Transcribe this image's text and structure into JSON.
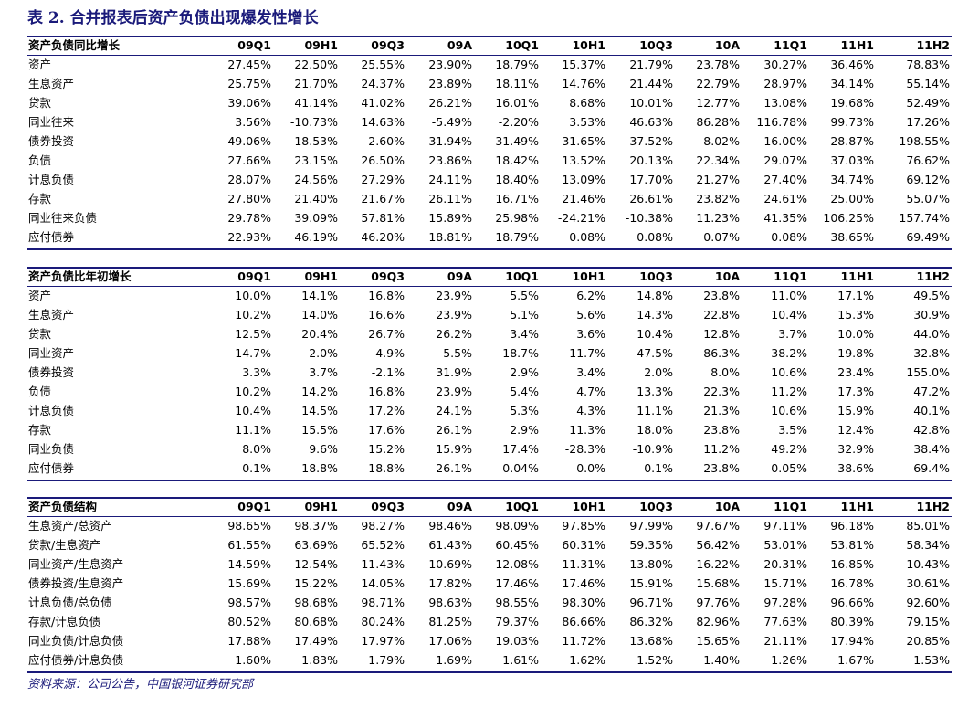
{
  "title": "表 2. 合并报表后资产负债出现爆发性增长",
  "tables": [
    {
      "header": [
        "资产负债同比增长",
        "09Q1",
        "09H1",
        "09Q3",
        "09A",
        "10Q1",
        "10H1",
        "10Q3",
        "10A",
        "11Q1",
        "11H1",
        "11H2"
      ],
      "rows": [
        [
          "资产",
          "27.45%",
          "22.50%",
          "25.55%",
          "23.90%",
          "18.79%",
          "15.37%",
          "21.79%",
          "23.78%",
          "30.27%",
          "36.46%",
          "78.83%"
        ],
        [
          "生息资产",
          "25.75%",
          "21.70%",
          "24.37%",
          "23.89%",
          "18.11%",
          "14.76%",
          "21.44%",
          "22.79%",
          "28.97%",
          "34.14%",
          "55.14%"
        ],
        [
          "贷款",
          "39.06%",
          "41.14%",
          "41.02%",
          "26.21%",
          "16.01%",
          "8.68%",
          "10.01%",
          "12.77%",
          "13.08%",
          "19.68%",
          "52.49%"
        ],
        [
          "同业往来",
          "3.56%",
          "-10.73%",
          "14.63%",
          "-5.49%",
          "-2.20%",
          "3.53%",
          "46.63%",
          "86.28%",
          "116.78%",
          "99.73%",
          "17.26%"
        ],
        [
          "债券投资",
          "49.06%",
          "18.53%",
          "-2.60%",
          "31.94%",
          "31.49%",
          "31.65%",
          "37.52%",
          "8.02%",
          "16.00%",
          "28.87%",
          "198.55%"
        ],
        [
          "负债",
          "27.66%",
          "23.15%",
          "26.50%",
          "23.86%",
          "18.42%",
          "13.52%",
          "20.13%",
          "22.34%",
          "29.07%",
          "37.03%",
          "76.62%"
        ],
        [
          "计息负债",
          "28.07%",
          "24.56%",
          "27.29%",
          "24.11%",
          "18.40%",
          "13.09%",
          "17.70%",
          "21.27%",
          "27.40%",
          "34.74%",
          "69.12%"
        ],
        [
          "存款",
          "27.80%",
          "21.40%",
          "21.67%",
          "26.11%",
          "16.71%",
          "21.46%",
          "26.61%",
          "23.82%",
          "24.61%",
          "25.00%",
          "55.07%"
        ],
        [
          "同业往来负债",
          "29.78%",
          "39.09%",
          "57.81%",
          "15.89%",
          "25.98%",
          "-24.21%",
          "-10.38%",
          "11.23%",
          "41.35%",
          "106.25%",
          "157.74%"
        ],
        [
          "应付债券",
          "22.93%",
          "46.19%",
          "46.20%",
          "18.81%",
          "18.79%",
          "0.08%",
          "0.08%",
          "0.07%",
          "0.08%",
          "38.65%",
          "69.49%"
        ]
      ]
    },
    {
      "header": [
        "资产负债比年初增长",
        "09Q1",
        "09H1",
        "09Q3",
        "09A",
        "10Q1",
        "10H1",
        "10Q3",
        "10A",
        "11Q1",
        "11H1",
        "11H2"
      ],
      "rows": [
        [
          "资产",
          "10.0%",
          "14.1%",
          "16.8%",
          "23.9%",
          "5.5%",
          "6.2%",
          "14.8%",
          "23.8%",
          "11.0%",
          "17.1%",
          "49.5%"
        ],
        [
          "生息资产",
          "10.2%",
          "14.0%",
          "16.6%",
          "23.9%",
          "5.1%",
          "5.6%",
          "14.3%",
          "22.8%",
          "10.4%",
          "15.3%",
          "30.9%"
        ],
        [
          "贷款",
          "12.5%",
          "20.4%",
          "26.7%",
          "26.2%",
          "3.4%",
          "3.6%",
          "10.4%",
          "12.8%",
          "3.7%",
          "10.0%",
          "44.0%"
        ],
        [
          "同业资产",
          "14.7%",
          "2.0%",
          "-4.9%",
          "-5.5%",
          "18.7%",
          "11.7%",
          "47.5%",
          "86.3%",
          "38.2%",
          "19.8%",
          "-32.8%"
        ],
        [
          "债券投资",
          "3.3%",
          "3.7%",
          "-2.1%",
          "31.9%",
          "2.9%",
          "3.4%",
          "2.0%",
          "8.0%",
          "10.6%",
          "23.4%",
          "155.0%"
        ],
        [
          "负债",
          "10.2%",
          "14.2%",
          "16.8%",
          "23.9%",
          "5.4%",
          "4.7%",
          "13.3%",
          "22.3%",
          "11.2%",
          "17.3%",
          "47.2%"
        ],
        [
          "计息负债",
          "10.4%",
          "14.5%",
          "17.2%",
          "24.1%",
          "5.3%",
          "4.3%",
          "11.1%",
          "21.3%",
          "10.6%",
          "15.9%",
          "40.1%"
        ],
        [
          "存款",
          "11.1%",
          "15.5%",
          "17.6%",
          "26.1%",
          "2.9%",
          "11.3%",
          "18.0%",
          "23.8%",
          "3.5%",
          "12.4%",
          "42.8%"
        ],
        [
          "同业负债",
          "8.0%",
          "9.6%",
          "15.2%",
          "15.9%",
          "17.4%",
          "-28.3%",
          "-10.9%",
          "11.2%",
          "49.2%",
          "32.9%",
          "38.4%"
        ],
        [
          "应付债券",
          "0.1%",
          "18.8%",
          "18.8%",
          "26.1%",
          "0.04%",
          "0.0%",
          "0.1%",
          "23.8%",
          "0.05%",
          "38.6%",
          "69.4%"
        ]
      ]
    },
    {
      "header": [
        "资产负债结构",
        "09Q1",
        "09H1",
        "09Q3",
        "09A",
        "10Q1",
        "10H1",
        "10Q3",
        "10A",
        "11Q1",
        "11H1",
        "11H2"
      ],
      "rows": [
        [
          "生息资产/总资产",
          "98.65%",
          "98.37%",
          "98.27%",
          "98.46%",
          "98.09%",
          "97.85%",
          "97.99%",
          "97.67%",
          "97.11%",
          "96.18%",
          "85.01%"
        ],
        [
          "贷款/生息资产",
          "61.55%",
          "63.69%",
          "65.52%",
          "61.43%",
          "60.45%",
          "60.31%",
          "59.35%",
          "56.42%",
          "53.01%",
          "53.81%",
          "58.34%"
        ],
        [
          "同业资产/生息资产",
          "14.59%",
          "12.54%",
          "11.43%",
          "10.69%",
          "12.08%",
          "11.31%",
          "13.80%",
          "16.22%",
          "20.31%",
          "16.85%",
          "10.43%"
        ],
        [
          "债券投资/生息资产",
          "15.69%",
          "15.22%",
          "14.05%",
          "17.82%",
          "17.46%",
          "17.46%",
          "15.91%",
          "15.68%",
          "15.71%",
          "16.78%",
          "30.61%"
        ],
        [
          "计息负债/总负债",
          "98.57%",
          "98.68%",
          "98.71%",
          "98.63%",
          "98.55%",
          "98.30%",
          "96.71%",
          "97.76%",
          "97.28%",
          "96.66%",
          "92.60%"
        ],
        [
          "存款/计息负债",
          "80.52%",
          "80.68%",
          "80.24%",
          "81.25%",
          "79.37%",
          "86.66%",
          "86.32%",
          "82.96%",
          "77.63%",
          "80.39%",
          "79.15%"
        ],
        [
          "同业负债/计息负债",
          "17.88%",
          "17.49%",
          "17.97%",
          "17.06%",
          "19.03%",
          "11.72%",
          "13.68%",
          "15.65%",
          "21.11%",
          "17.94%",
          "20.85%"
        ],
        [
          "应付债券/计息负债",
          "1.60%",
          "1.83%",
          "1.79%",
          "1.69%",
          "1.61%",
          "1.62%",
          "1.52%",
          "1.40%",
          "1.26%",
          "1.67%",
          "1.53%"
        ]
      ]
    }
  ],
  "source": "资料来源：公司公告，中国银河证券研究部"
}
